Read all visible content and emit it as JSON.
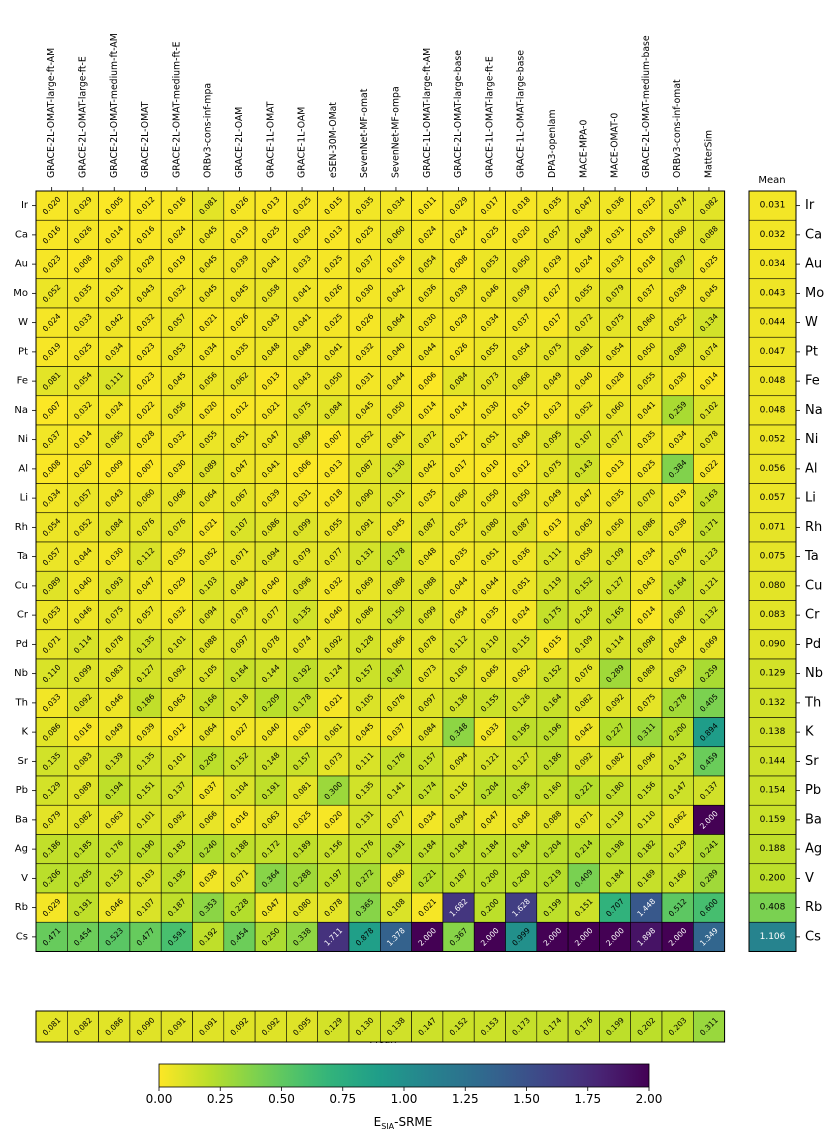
{
  "chart_data": {
    "type": "heatmap",
    "models": [
      "GRACE-2L-OMAT-large-ft-AM",
      "GRACE-2L-OMAT-large-ft-E",
      "GRACE-2L-OMAT-medium-ft-AM",
      "GRACE-2L-OMAT",
      "GRACE-2L-OMAT-medium-ft-E",
      "ORBv3-cons-inf-mpa",
      "GRACE-2L-OAM",
      "GRACE-1L-OMAT",
      "GRACE-1L-OAM",
      "eSEN-30M-OMat",
      "SevenNet-MF-omat",
      "SevenNet-MF-ompa",
      "GRACE-1L-OMAT-large-ft-AM",
      "GRACE-2L-OMAT-large-base",
      "GRACE-1L-OMAT-large-ft-E",
      "GRACE-1L-OMAT-large-base",
      "DPA3-openlam",
      "MACE-MPA-0",
      "MACE-OMAT-0",
      "GRACE-2L-OMAT-medium-base",
      "ORBv3-cons-inf-omat",
      "MatterSim"
    ],
    "elements": [
      "Ir",
      "Ca",
      "Au",
      "Mo",
      "W",
      "Pt",
      "Fe",
      "Na",
      "Ni",
      "Al",
      "Li",
      "Rh",
      "Ta",
      "Cu",
      "Cr",
      "Pd",
      "Nb",
      "Th",
      "K",
      "Sr",
      "Pb",
      "Ba",
      "Ag",
      "V",
      "Rb",
      "Cs"
    ],
    "values": [
      [
        0.02,
        0.029,
        0.005,
        0.012,
        0.016,
        0.081,
        0.026,
        0.013,
        0.025,
        0.015,
        0.035,
        0.034,
        0.011,
        0.029,
        0.017,
        0.018,
        0.035,
        0.047,
        0.036,
        0.023,
        0.074,
        0.082
      ],
      [
        0.016,
        0.026,
        0.014,
        0.016,
        0.024,
        0.045,
        0.019,
        0.025,
        0.029,
        0.013,
        0.025,
        0.06,
        0.024,
        0.024,
        0.025,
        0.02,
        0.057,
        0.048,
        0.031,
        0.018,
        0.06,
        0.088
      ],
      [
        0.023,
        0.008,
        0.03,
        0.029,
        0.019,
        0.045,
        0.039,
        0.041,
        0.033,
        0.025,
        0.037,
        0.016,
        0.054,
        0.008,
        0.053,
        0.05,
        0.029,
        0.024,
        0.033,
        0.018,
        0.097,
        0.025
      ],
      [
        0.052,
        0.035,
        0.031,
        0.043,
        0.032,
        0.045,
        0.045,
        0.058,
        0.041,
        0.026,
        0.03,
        0.042,
        0.036,
        0.039,
        0.046,
        0.059,
        0.027,
        0.055,
        0.079,
        0.037,
        0.038,
        0.045
      ],
      [
        0.024,
        0.033,
        0.042,
        0.032,
        0.057,
        0.021,
        0.026,
        0.043,
        0.041,
        0.025,
        0.026,
        0.064,
        0.03,
        0.029,
        0.034,
        0.037,
        0.017,
        0.072,
        0.075,
        0.06,
        0.052,
        0.134
      ],
      [
        0.019,
        0.025,
        0.034,
        0.023,
        0.053,
        0.034,
        0.035,
        0.048,
        0.048,
        0.041,
        0.032,
        0.04,
        0.044,
        0.026,
        0.055,
        0.054,
        0.075,
        0.081,
        0.054,
        0.05,
        0.089,
        0.074
      ],
      [
        0.081,
        0.054,
        0.111,
        0.023,
        0.045,
        0.056,
        0.062,
        0.013,
        0.043,
        0.05,
        0.031,
        0.044,
        0.006,
        0.084,
        0.073,
        0.068,
        0.049,
        0.04,
        0.028,
        0.055,
        0.03,
        0.014
      ],
      [
        0.007,
        0.032,
        0.024,
        0.022,
        0.056,
        0.02,
        0.012,
        0.021,
        0.075,
        0.084,
        0.045,
        0.05,
        0.014,
        0.014,
        0.03,
        0.015,
        0.023,
        0.052,
        0.06,
        0.041,
        0.259,
        0.102
      ],
      [
        0.037,
        0.014,
        0.065,
        0.028,
        0.032,
        0.055,
        0.051,
        0.047,
        0.069,
        0.007,
        0.052,
        0.061,
        0.072,
        0.021,
        0.051,
        0.048,
        0.095,
        0.107,
        0.077,
        0.035,
        0.034,
        0.078
      ],
      [
        0.008,
        0.02,
        0.009,
        0.007,
        0.03,
        0.089,
        0.047,
        0.041,
        0.006,
        0.013,
        0.087,
        0.13,
        0.042,
        0.017,
        0.01,
        0.012,
        0.075,
        0.143,
        0.013,
        0.025,
        0.384,
        0.022
      ],
      [
        0.034,
        0.057,
        0.043,
        0.06,
        0.068,
        0.064,
        0.067,
        0.039,
        0.031,
        0.018,
        0.09,
        0.101,
        0.035,
        0.06,
        0.05,
        0.05,
        0.049,
        0.047,
        0.035,
        0.07,
        0.019,
        0.163
      ],
      [
        0.054,
        0.052,
        0.084,
        0.076,
        0.076,
        0.021,
        0.107,
        0.086,
        0.099,
        0.055,
        0.091,
        0.045,
        0.087,
        0.052,
        0.08,
        0.087,
        0.013,
        0.063,
        0.05,
        0.086,
        0.038,
        0.171
      ],
      [
        0.057,
        0.044,
        0.03,
        0.112,
        0.035,
        0.052,
        0.071,
        0.094,
        0.079,
        0.077,
        0.131,
        0.178,
        0.048,
        0.035,
        0.051,
        0.036,
        0.111,
        0.058,
        0.109,
        0.034,
        0.076,
        0.123
      ],
      [
        0.089,
        0.04,
        0.093,
        0.047,
        0.029,
        0.103,
        0.084,
        0.04,
        0.096,
        0.032,
        0.069,
        0.088,
        0.088,
        0.044,
        0.044,
        0.051,
        0.119,
        0.152,
        0.127,
        0.043,
        0.164,
        0.121
      ],
      [
        0.053,
        0.046,
        0.075,
        0.057,
        0.032,
        0.094,
        0.079,
        0.077,
        0.135,
        0.04,
        0.086,
        0.15,
        0.099,
        0.054,
        0.035,
        0.024,
        0.175,
        0.126,
        0.165,
        0.014,
        0.087,
        0.132
      ],
      [
        0.071,
        0.114,
        0.078,
        0.135,
        0.101,
        0.088,
        0.097,
        0.078,
        0.074,
        0.092,
        0.128,
        0.066,
        0.078,
        0.112,
        0.11,
        0.115,
        0.015,
        0.109,
        0.114,
        0.098,
        0.048,
        0.069
      ],
      [
        0.11,
        0.099,
        0.083,
        0.127,
        0.092,
        0.105,
        0.164,
        0.144,
        0.192,
        0.124,
        0.157,
        0.187,
        0.073,
        0.105,
        0.065,
        0.052,
        0.152,
        0.076,
        0.289,
        0.089,
        0.093,
        0.259
      ],
      [
        0.033,
        0.092,
        0.046,
        0.186,
        0.063,
        0.166,
        0.118,
        0.209,
        0.178,
        0.021,
        0.105,
        0.076,
        0.097,
        0.136,
        0.155,
        0.126,
        0.164,
        0.082,
        0.092,
        0.075,
        0.278,
        0.405
      ],
      [
        0.086,
        0.016,
        0.049,
        0.039,
        0.012,
        0.064,
        0.027,
        0.04,
        0.02,
        0.061,
        0.045,
        0.037,
        0.084,
        0.348,
        0.033,
        0.195,
        0.196,
        0.042,
        0.227,
        0.311,
        0.2,
        0.894
      ],
      [
        0.135,
        0.083,
        0.139,
        0.135,
        0.101,
        0.205,
        0.152,
        0.148,
        0.157,
        0.073,
        0.111,
        0.176,
        0.157,
        0.094,
        0.121,
        0.127,
        0.186,
        0.092,
        0.082,
        0.096,
        0.143,
        0.459
      ],
      [
        0.129,
        0.089,
        0.194,
        0.151,
        0.137,
        0.037,
        0.104,
        0.191,
        0.081,
        0.3,
        0.135,
        0.141,
        0.174,
        0.116,
        0.204,
        0.195,
        0.16,
        0.221,
        0.18,
        0.156,
        0.147,
        0.137
      ],
      [
        0.079,
        0.082,
        0.063,
        0.101,
        0.092,
        0.066,
        0.016,
        0.063,
        0.025,
        0.02,
        0.131,
        0.077,
        0.034,
        0.094,
        0.047,
        0.048,
        0.088,
        0.071,
        0.119,
        0.11,
        0.062,
        2.0
      ],
      [
        0.186,
        0.185,
        0.176,
        0.19,
        0.183,
        0.24,
        0.188,
        0.172,
        0.189,
        0.156,
        0.176,
        0.191,
        0.184,
        0.184,
        0.184,
        0.184,
        0.204,
        0.214,
        0.198,
        0.182,
        0.129,
        0.241
      ],
      [
        0.206,
        0.205,
        0.153,
        0.103,
        0.195,
        0.038,
        0.071,
        0.364,
        0.288,
        0.197,
        0.272,
        0.06,
        0.221,
        0.187,
        0.2,
        0.2,
        0.219,
        0.409,
        0.184,
        0.169,
        0.16,
        0.289
      ],
      [
        0.029,
        0.191,
        0.046,
        0.107,
        0.187,
        0.353,
        0.228,
        0.047,
        0.08,
        0.078,
        0.365,
        0.108,
        0.021,
        1.682,
        0.2,
        1.628,
        0.199,
        0.151,
        0.707,
        1.448,
        0.512,
        0.6
      ],
      [
        0.471,
        0.454,
        0.523,
        0.477,
        0.591,
        0.192,
        0.454,
        0.25,
        0.338,
        1.711,
        0.878,
        1.378,
        2.0,
        0.367,
        2.0,
        0.999,
        2.0,
        2.0,
        2.0,
        1.898,
        2.0,
        1.349
      ]
    ],
    "row_means": [
      0.031,
      0.032,
      0.034,
      0.043,
      0.044,
      0.047,
      0.048,
      0.048,
      0.052,
      0.056,
      0.057,
      0.071,
      0.075,
      0.08,
      0.083,
      0.09,
      0.129,
      0.132,
      0.138,
      0.144,
      0.154,
      0.159,
      0.188,
      0.2,
      0.408,
      1.106
    ],
    "col_means": [
      0.081,
      0.082,
      0.086,
      0.09,
      0.091,
      0.091,
      0.092,
      0.092,
      0.095,
      0.129,
      0.13,
      0.138,
      0.147,
      0.152,
      0.153,
      0.173,
      0.174,
      0.176,
      0.199,
      0.202,
      0.203,
      0.311
    ],
    "row_mean_title": "Mean",
    "col_mean_label": "Mean",
    "colorbar": {
      "min": 0.0,
      "max": 2.0,
      "colormap": "viridis_r",
      "ticks": [
        "0.00",
        "0.25",
        "0.50",
        "0.75",
        "1.00",
        "1.25",
        "1.50",
        "1.75",
        "2.00"
      ],
      "label_main": "E",
      "label_sub": "SIA",
      "label_rest": "-SRME"
    }
  }
}
